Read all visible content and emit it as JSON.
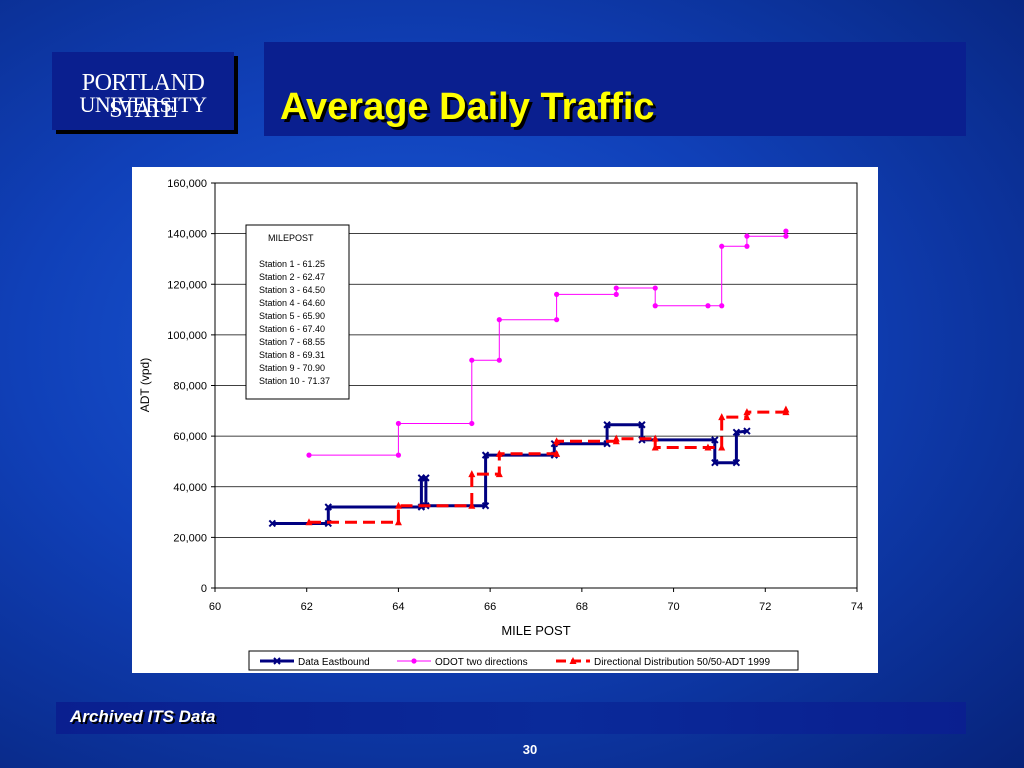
{
  "logo": {
    "line1": "PORTLAND STATE",
    "line2": "UNIVERSITY"
  },
  "slide": {
    "title": "Average Daily Traffic",
    "footer": "Archived ITS Data",
    "page_number": "30"
  },
  "chart_data": {
    "type": "line",
    "title": "",
    "xlabel": "MILE POST",
    "ylabel": "ADT (vpd)",
    "xlim": [
      60,
      74
    ],
    "ylim": [
      0,
      160000
    ],
    "xticks": [
      "60",
      "62",
      "64",
      "66",
      "68",
      "70",
      "72",
      "74"
    ],
    "yticks": [
      "0",
      "20,000",
      "40,000",
      "60,000",
      "80,000",
      "100,000",
      "120,000",
      "140,000",
      "160,000"
    ],
    "grid": "horizontal",
    "legend_position": "bottom",
    "milepost_box": {
      "title": "MILEPOST",
      "entries": [
        "Station 1 - 61.25",
        "Station 2 - 62.47",
        "Station 3 - 64.50",
        "Station 4 - 64.60",
        "Station 5 - 65.90",
        "Station 6 - 67.40",
        "Station 7 - 68.55",
        "Station 8 - 69.31",
        "Station 9 - 70.90",
        "Station 10 - 71.37"
      ]
    },
    "series": [
      {
        "name": "Data Eastbound",
        "color": "#000080",
        "style": "solid",
        "marker": "x",
        "points": [
          [
            61.25,
            25500
          ],
          [
            62.47,
            25500
          ],
          [
            62.47,
            32000
          ],
          [
            64.5,
            32000
          ],
          [
            64.5,
            43500
          ],
          [
            64.6,
            43500
          ],
          [
            64.6,
            32500
          ],
          [
            65.9,
            32500
          ],
          [
            65.9,
            52500
          ],
          [
            67.4,
            52500
          ],
          [
            67.4,
            57000
          ],
          [
            68.55,
            57000
          ],
          [
            68.55,
            64500
          ],
          [
            69.31,
            64500
          ],
          [
            69.31,
            58500
          ],
          [
            70.9,
            58500
          ],
          [
            70.9,
            49500
          ],
          [
            71.37,
            49500
          ],
          [
            71.37,
            61500
          ],
          [
            71.6,
            62000
          ]
        ]
      },
      {
        "name": "ODOT two directions",
        "color": "#ff00ff",
        "style": "solid",
        "marker": "circle",
        "points": [
          [
            62.05,
            52500
          ],
          [
            64.0,
            52500
          ],
          [
            64.0,
            65000
          ],
          [
            65.6,
            65000
          ],
          [
            65.6,
            90000
          ],
          [
            66.2,
            90000
          ],
          [
            66.2,
            106000
          ],
          [
            67.45,
            106000
          ],
          [
            67.45,
            116000
          ],
          [
            68.75,
            116000
          ],
          [
            68.75,
            118500
          ],
          [
            69.6,
            118500
          ],
          [
            69.6,
            111500
          ],
          [
            70.75,
            111500
          ],
          [
            71.05,
            111500
          ],
          [
            71.05,
            135000
          ],
          [
            71.6,
            135000
          ],
          [
            71.6,
            139000
          ],
          [
            72.45,
            139000
          ],
          [
            72.45,
            141000
          ]
        ]
      },
      {
        "name": "Directional Distribution 50/50-ADT 1999",
        "color": "#ff0000",
        "style": "dashed",
        "marker": "triangle",
        "points": [
          [
            62.05,
            26000
          ],
          [
            64.0,
            26000
          ],
          [
            64.0,
            32500
          ],
          [
            65.6,
            32500
          ],
          [
            65.6,
            45000
          ],
          [
            66.2,
            45000
          ],
          [
            66.2,
            53000
          ],
          [
            67.45,
            53000
          ],
          [
            67.45,
            58000
          ],
          [
            68.75,
            58000
          ],
          [
            68.75,
            59000
          ],
          [
            69.6,
            59000
          ],
          [
            69.6,
            55500
          ],
          [
            70.75,
            55500
          ],
          [
            71.05,
            55500
          ],
          [
            71.05,
            67500
          ],
          [
            71.6,
            67500
          ],
          [
            71.6,
            69500
          ],
          [
            72.45,
            69500
          ],
          [
            72.45,
            70500
          ]
        ]
      }
    ]
  }
}
